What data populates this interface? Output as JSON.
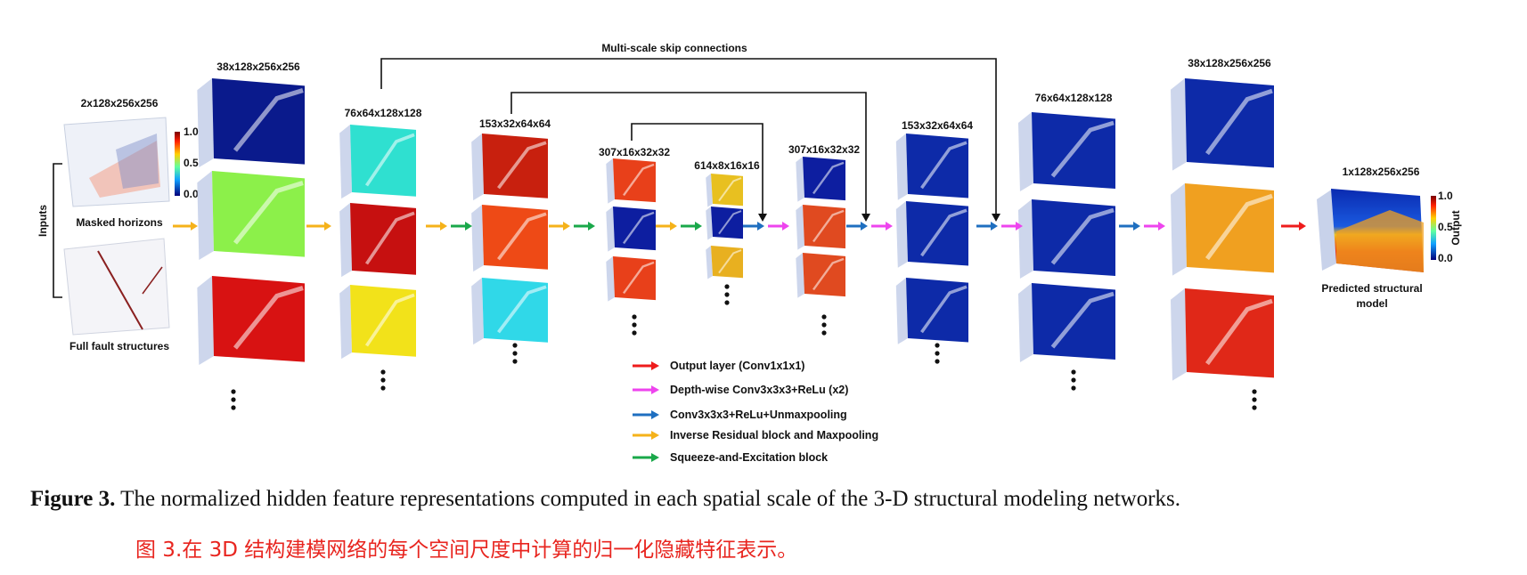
{
  "top_label": "Multi-scale skip connections",
  "inputs": {
    "side_label": "Inputs",
    "dim": "2x128x256x256",
    "masked_label": "Masked horizons",
    "fault_label": "Full fault structures",
    "colorbar_ticks": [
      "1.0",
      "0.5",
      "0.0"
    ]
  },
  "stages": [
    {
      "dim": "38x128x256x256",
      "colors": [
        "#0a1a8c",
        "#8cf04a",
        "#d81212"
      ]
    },
    {
      "dim": "76x64x128x128",
      "colors": [
        "#2fe0d0",
        "#c61010",
        "#f2e21a"
      ]
    },
    {
      "dim": "153x32x64x64",
      "colors": [
        "#c8200e",
        "#ee4a16",
        "#30d8e8"
      ]
    },
    {
      "dim": "307x16x32x32",
      "colors": [
        "#e8401a",
        "#0d1ea0",
        "#e8401a"
      ]
    },
    {
      "dim": "614x8x16x16",
      "colors": [
        "#e8c020",
        "#0d1ea0",
        "#e8b020"
      ]
    },
    {
      "dim": "307x16x32x32",
      "colors": [
        "#0d1ea0",
        "#e04a20",
        "#e04a20"
      ]
    },
    {
      "dim": "153x32x64x64",
      "colors": [
        "#0d2aa8",
        "#0d2aa8",
        "#0d2aa8"
      ]
    },
    {
      "dim": "76x64x128x128",
      "colors": [
        "#0d2aa8",
        "#0d2aa8",
        "#0d2aa8"
      ]
    },
    {
      "dim": "38x128x256x256",
      "colors": [
        "#0d2aa8",
        "#f0a020",
        "#e02818"
      ]
    }
  ],
  "output": {
    "dim": "1x128x256x256",
    "label_line1": "Predicted structural",
    "label_line2": "model",
    "colorbar_title": "Output",
    "colorbar_ticks": [
      "1.0",
      "0.5",
      "0.0"
    ]
  },
  "legend": [
    {
      "label": "Output layer (Conv1x1x1)",
      "color": "#ee1c1c"
    },
    {
      "label": "Depth-wise Conv3x3x3+ReLu (x2)",
      "color": "#ee44ee"
    },
    {
      "label": "Conv3x3x3+ReLu+Unmaxpooling",
      "color": "#1f6fc0"
    },
    {
      "label": "Inverse Residual block and Maxpooling",
      "color": "#f5b21a"
    },
    {
      "label": "Squeeze-and-Excitation block",
      "color": "#1aa84a"
    }
  ],
  "caption": {
    "bold": "Figure 3.",
    "text": " The normalized hidden feature representations computed in each spatial scale of the 3-D structural modeling networks.",
    "cn": "图 3.在 3D 结构建模网络的每个空间尺度中计算的归一化隐藏特征表示。"
  }
}
